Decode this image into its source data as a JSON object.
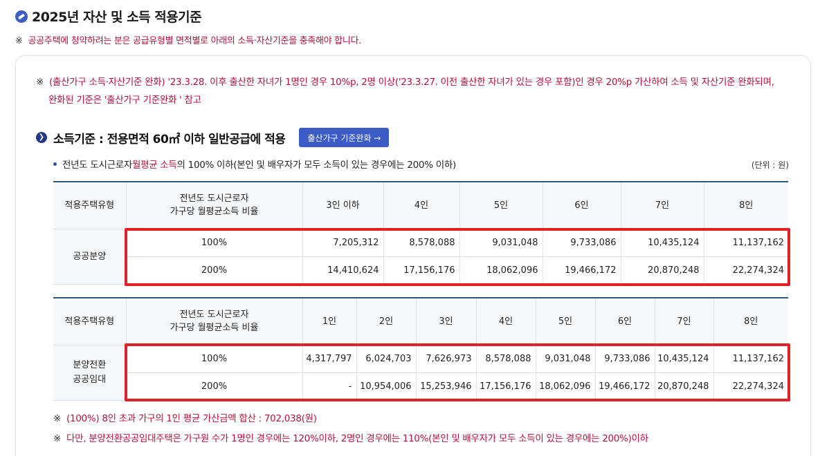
{
  "header": {
    "icon": "link-circle-icon",
    "title": "2025년 자산 및 소득 적용기준",
    "mark": "※",
    "note": "공공주택에 청약하려는 분은 공급유형별 면적별로 아래의 소득·자산기준을 충족해야 합니다."
  },
  "relief_note": {
    "mark": "※",
    "line1": "(출산가구 소득·자산기준 완화) '23.3.28. 이후 출산한 자녀가 1명인 경우 10%p, 2명 이상('23.3.27. 이전 출산한 자녀가 있는 경우 포함)인 경우 20%p 가산하여 소득 및 자산기준 완화되며,",
    "line2": "완화된 기준은 '출산가구 기준완화 ' 참고"
  },
  "section": {
    "title": "소득기준 : 전용면적 60㎡ 이하 일반공급에 적용",
    "button_label": "출산가구 기준완화 →",
    "bullet_prefix": "전년도 도시근로자 ",
    "bullet_red": "월평균 소득",
    "bullet_suffix": "의 100% 이하(본인 및 배우자가 모두 소득이 있는 경우에는 200% 이하)",
    "unit": "(단위 : 원)"
  },
  "table1": {
    "headers": [
      "적용주택유형",
      "전년도 도시근로자",
      "가구당 월평균소득 비율",
      "3인 이하",
      "4인",
      "5인",
      "6인",
      "7인",
      "8인"
    ],
    "type": "공공분양",
    "rows": [
      {
        "ratio": "100%",
        "values": [
          "7,205,312",
          "8,578,088",
          "9,031,048",
          "9,733,086",
          "10,435,124",
          "11,137,162"
        ]
      },
      {
        "ratio": "200%",
        "values": [
          "14,410,624",
          "17,156,176",
          "18,062,096",
          "19,466,172",
          "20,870,248",
          "22,274,324"
        ]
      }
    ]
  },
  "table2": {
    "headers": [
      "적용주택유형",
      "전년도 도시근로자",
      "가구당 월평균소득 비율",
      "1인",
      "2인",
      "3인",
      "4인",
      "5인",
      "6인",
      "7인",
      "8인"
    ],
    "type_line1": "분양전환",
    "type_line2": "공공임대",
    "rows": [
      {
        "ratio": "100%",
        "values": [
          "4,317,797",
          "6,024,703",
          "7,626,973",
          "8,578,088",
          "9,031,048",
          "9,733,086",
          "10,435,124",
          "11,137,162"
        ]
      },
      {
        "ratio": "200%",
        "values": [
          "-",
          "10,954,006",
          "15,253,946",
          "17,156,176",
          "18,062,096",
          "19,466,172",
          "20,870,248",
          "22,274,324"
        ]
      }
    ]
  },
  "notes": {
    "mark": "※",
    "note1": "(100%) 8인 초과 가구의 1인 평균 가산금액 합산 : 702,038(원)",
    "note2": "다만, 분양전환공공임대주택은 가구원 수가 1명인 경우에는 120%이하, 2명인 경우에는 110%(본인 및 배우자가 모두 소득이 있는 경우에는 200%)이하"
  },
  "colors": {
    "accent": "#3b5bc7",
    "alert_text": "#b3123a",
    "highlight_border": "#e02127",
    "table_header_bg": "#f4f8fb"
  }
}
